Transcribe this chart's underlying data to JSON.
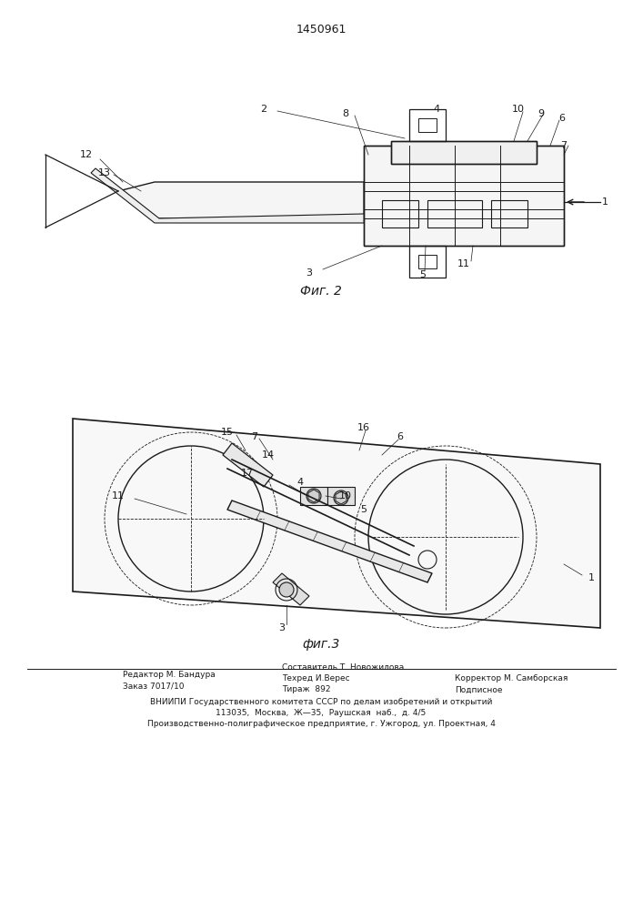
{
  "title": "1450961",
  "fig2_label": "Фиг. 2",
  "fig3_label": "фиг.3",
  "footer_line1_left": "Редактор М. Бандура",
  "footer_line2_left": "Заказ 7017/10",
  "footer_line1_center": "Составитель Т. Новожилова",
  "footer_line2_center": "Техред И.Верес",
  "footer_line3_center": "Тираж  892",
  "footer_line1_right": "",
  "footer_line2_right": "Корректор М. Самборская",
  "footer_line3_right": "Подписное",
  "footer_vniiipi": "ВНИИПИ Государственного комитета СССР по делам изобретений и открытий",
  "footer_address": "113035,  Москва,  Ж—35,  Раушская  наб.,  д. 4/5",
  "footer_enterprise": "Производственно-полиграфическое предприятие, г. Ужгород, ул. Проектная, 4",
  "bg_color": "#ffffff",
  "line_color": "#1a1a1a",
  "fig_width": 7.07,
  "fig_height": 10.0,
  "dpi": 100
}
